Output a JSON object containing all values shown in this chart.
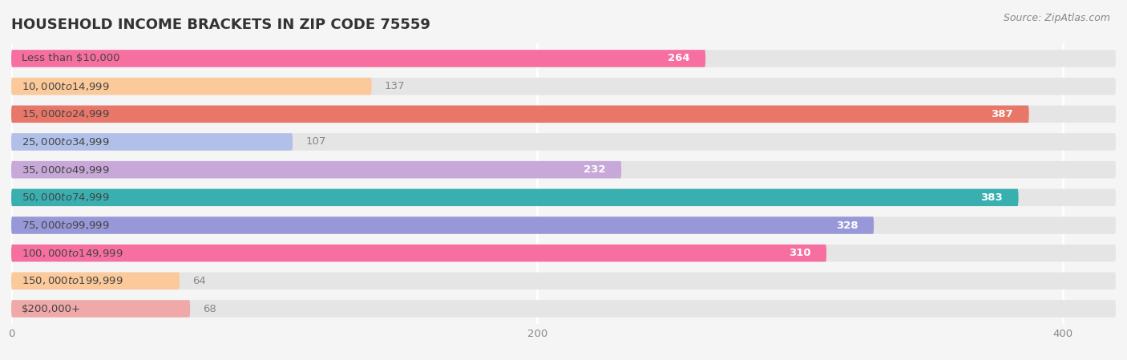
{
  "title": "HOUSEHOLD INCOME BRACKETS IN ZIP CODE 75559",
  "source": "Source: ZipAtlas.com",
  "categories": [
    "Less than $10,000",
    "$10,000 to $14,999",
    "$15,000 to $24,999",
    "$25,000 to $34,999",
    "$35,000 to $49,999",
    "$50,000 to $74,999",
    "$75,000 to $99,999",
    "$100,000 to $149,999",
    "$150,000 to $199,999",
    "$200,000+"
  ],
  "values": [
    264,
    137,
    387,
    107,
    232,
    383,
    328,
    310,
    64,
    68
  ],
  "bar_colors": [
    "#F76FA0",
    "#FBC99A",
    "#E8776A",
    "#B0C0E8",
    "#C8A8D8",
    "#3AAFB0",
    "#9898D8",
    "#F76FA0",
    "#FBC99A",
    "#F0A8A8"
  ],
  "xlim_max": 420,
  "xticks": [
    0,
    200,
    400
  ],
  "background_color": "#f5f5f5",
  "bar_bg_color": "#e5e5e5",
  "title_fontsize": 13,
  "label_fontsize": 9.5,
  "value_fontsize": 9.5,
  "source_fontsize": 9
}
